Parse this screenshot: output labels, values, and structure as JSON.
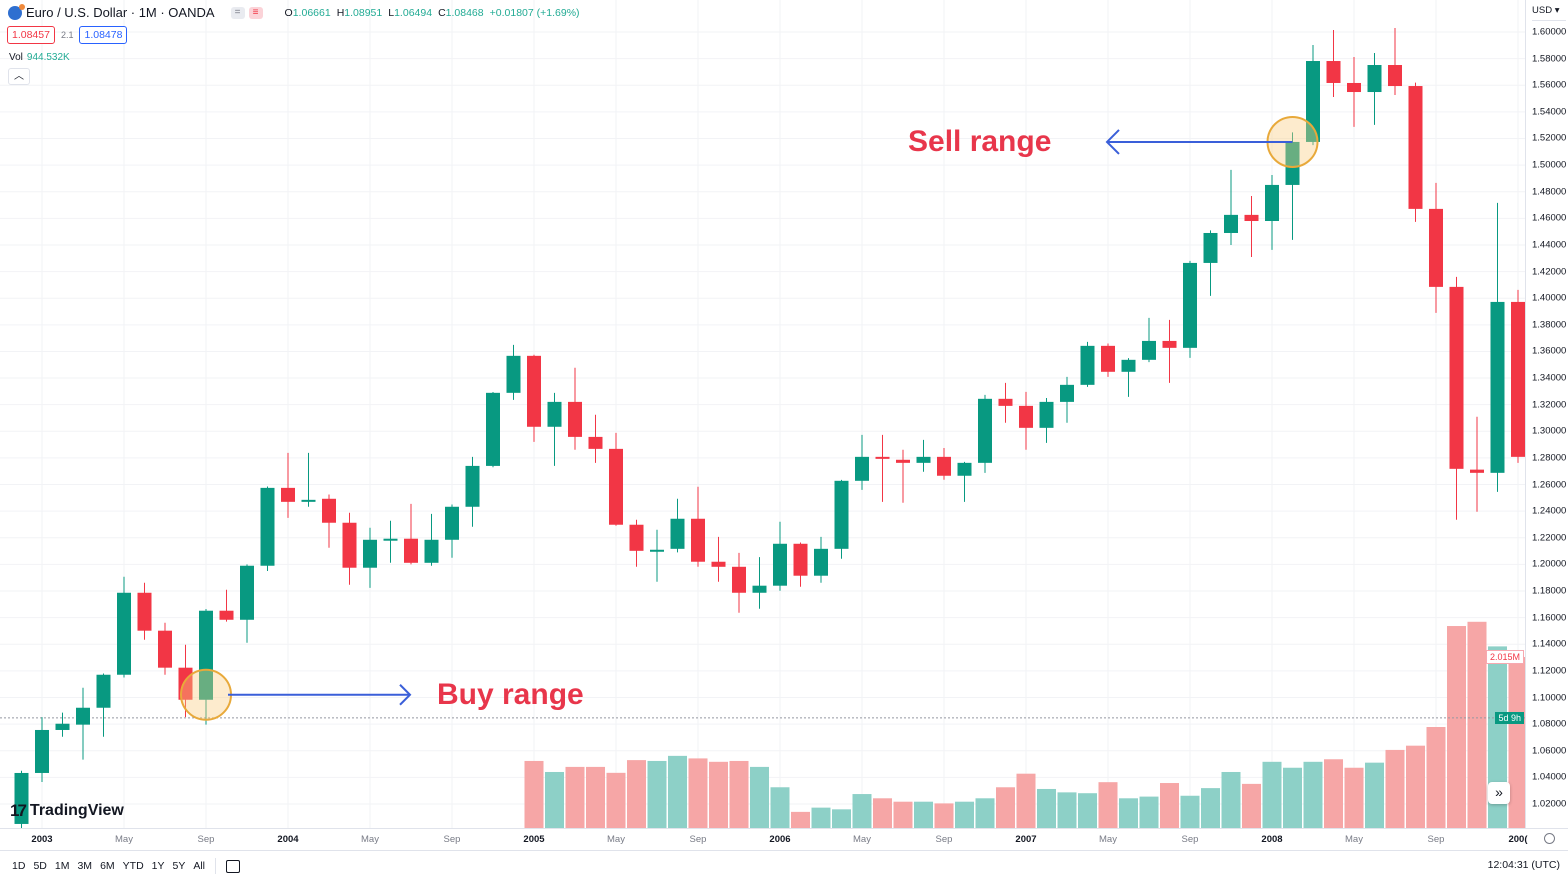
{
  "header": {
    "symbol": "Euro / U.S. Dollar · 1M · OANDA",
    "ohlc": [
      {
        "k": "O",
        "v": "1.06661"
      },
      {
        "k": "H",
        "v": "1.08951"
      },
      {
        "k": "L",
        "v": "1.06494"
      },
      {
        "k": "C",
        "v": "1.08468"
      }
    ],
    "change": "+0.01807 (+1.69%)",
    "sell_price": "1.08457",
    "spread": "2.1",
    "buy_price": "1.08478",
    "vol_label": "Vol",
    "vol_value": "944.532K",
    "collapse_icon": "chevron-up-icon"
  },
  "price_axis": {
    "currency": "USD ▾",
    "last_tag": "5d 9h",
    "volume_tag": "2.015M"
  },
  "annotations": {
    "buy": "Buy range",
    "sell": "Sell range"
  },
  "toolbar": {
    "ranges": [
      "1D",
      "5D",
      "1M",
      "3M",
      "6M",
      "YTD",
      "1Y",
      "5Y",
      "All"
    ],
    "clock": "12:04:31 (UTC)",
    "logo": "TradingView"
  },
  "colors": {
    "up": "#089981",
    "down": "#f23645",
    "vol_up": "#8dd0c7",
    "vol_down": "#f6a6a6",
    "anno": "#e8364b",
    "arrow": "#3a5fd9"
  },
  "chart_data": {
    "type": "candlestick",
    "title": "Euro / U.S. Dollar · 1M · OANDA",
    "ylim": [
      1.0,
      1.61
    ],
    "y_ticks": [
      "1.60000",
      "1.58000",
      "1.56000",
      "1.54000",
      "1.52000",
      "1.50000",
      "1.48000",
      "1.46000",
      "1.44000",
      "1.42000",
      "1.40000",
      "1.38000",
      "1.36000",
      "1.34000",
      "1.32000",
      "1.30000",
      "1.28000",
      "1.26000",
      "1.24000",
      "1.22000",
      "1.20000",
      "1.18000",
      "1.16000",
      "1.14000",
      "1.12000",
      "1.10000",
      "1.08000",
      "1.06000",
      "1.04000",
      "1.02000"
    ],
    "x_ticks": [
      {
        "label": "2003",
        "date": "2003-01",
        "major": true
      },
      {
        "label": "May",
        "date": "2003-05"
      },
      {
        "label": "Sep",
        "date": "2003-09"
      },
      {
        "label": "2004",
        "date": "2004-01",
        "major": true
      },
      {
        "label": "May",
        "date": "2004-05"
      },
      {
        "label": "Sep",
        "date": "2004-09"
      },
      {
        "label": "2005",
        "date": "2005-01",
        "major": true
      },
      {
        "label": "May",
        "date": "2005-05"
      },
      {
        "label": "Sep",
        "date": "2005-09"
      },
      {
        "label": "2006",
        "date": "2006-01",
        "major": true
      },
      {
        "label": "May",
        "date": "2006-05"
      },
      {
        "label": "Sep",
        "date": "2006-09"
      },
      {
        "label": "2007",
        "date": "2007-01",
        "major": true
      },
      {
        "label": "May",
        "date": "2007-05"
      },
      {
        "label": "Sep",
        "date": "2007-09"
      },
      {
        "label": "2008",
        "date": "2008-01",
        "major": true
      },
      {
        "label": "May",
        "date": "2008-05"
      },
      {
        "label": "Sep",
        "date": "2008-09"
      },
      {
        "label": "200(",
        "date": "2009-01",
        "major": true
      }
    ],
    "last_price": 1.08468,
    "candles": [
      [
        "2002-12",
        1.005,
        1.045,
        0.99,
        1.0433
      ],
      [
        "2003-01",
        1.0433,
        1.0853,
        1.0365,
        1.0756
      ],
      [
        "2003-02",
        1.0756,
        1.0886,
        1.0705,
        1.0803
      ],
      [
        "2003-03",
        1.0796,
        1.1073,
        1.0533,
        1.0923
      ],
      [
        "2003-04",
        1.0923,
        1.118,
        1.0705,
        1.1171
      ],
      [
        "2003-05",
        1.1171,
        1.1907,
        1.115,
        1.1787
      ],
      [
        "2003-06",
        1.1787,
        1.1862,
        1.1434,
        1.1502
      ],
      [
        "2003-07",
        1.1502,
        1.1562,
        1.1171,
        1.1224
      ],
      [
        "2003-08",
        1.1224,
        1.1396,
        1.0853,
        1.0983
      ],
      [
        "2003-09",
        1.0983,
        1.1665,
        1.0796,
        1.1652
      ],
      [
        "2003-10",
        1.1652,
        1.181,
        1.157,
        1.1584
      ],
      [
        "2003-11",
        1.1584,
        1.2,
        1.1411,
        1.199
      ],
      [
        "2003-12",
        1.199,
        1.2585,
        1.195,
        1.2575
      ],
      [
        "2004-01",
        1.2575,
        1.2838,
        1.235,
        1.247
      ],
      [
        "2004-02",
        1.247,
        1.2838,
        1.2433,
        1.2485
      ],
      [
        "2004-03",
        1.2493,
        1.2525,
        1.2125,
        1.2313
      ],
      [
        "2004-04",
        1.2313,
        1.2388,
        1.1847,
        1.1975
      ],
      [
        "2004-05",
        1.1975,
        1.2275,
        1.1824,
        1.2185
      ],
      [
        "2004-06",
        1.2185,
        1.2328,
        1.2012,
        1.2193
      ],
      [
        "2004-07",
        1.2193,
        1.2455,
        1.2,
        1.2012
      ],
      [
        "2004-08",
        1.2012,
        1.238,
        1.199,
        1.2185
      ],
      [
        "2004-09",
        1.2185,
        1.245,
        1.205,
        1.2433
      ],
      [
        "2004-10",
        1.2433,
        1.2808,
        1.2283,
        1.274
      ],
      [
        "2004-11",
        1.274,
        1.3295,
        1.273,
        1.3289
      ],
      [
        "2004-12",
        1.3289,
        1.3649,
        1.3236,
        1.3567
      ],
      [
        "2005-01",
        1.3567,
        1.3575,
        1.2921,
        1.3034
      ],
      [
        "2005-02",
        1.3034,
        1.3289,
        1.274,
        1.3221
      ],
      [
        "2005-03",
        1.3221,
        1.3477,
        1.2861,
        1.2958
      ],
      [
        "2005-04",
        1.2958,
        1.3124,
        1.2763,
        1.2868
      ],
      [
        "2005-05",
        1.2868,
        1.2988,
        1.229,
        1.2298
      ],
      [
        "2005-06",
        1.2298,
        1.2335,
        1.1982,
        1.2102
      ],
      [
        "2005-07",
        1.2102,
        1.226,
        1.187,
        1.211
      ],
      [
        "2005-08",
        1.2117,
        1.2493,
        1.209,
        1.2343
      ],
      [
        "2005-09",
        1.2343,
        1.2583,
        1.1982,
        1.202
      ],
      [
        "2005-10",
        1.202,
        1.2207,
        1.187,
        1.1982
      ],
      [
        "2005-11",
        1.1982,
        1.2087,
        1.1637,
        1.1787
      ],
      [
        "2005-12",
        1.1787,
        1.2055,
        1.1667,
        1.184
      ],
      [
        "2006-01",
        1.184,
        1.232,
        1.1802,
        1.2155
      ],
      [
        "2006-02",
        1.2155,
        1.2165,
        1.1832,
        1.1915
      ],
      [
        "2006-03",
        1.1915,
        1.2207,
        1.1862,
        1.2117
      ],
      [
        "2006-04",
        1.2117,
        1.2635,
        1.2042,
        1.2628
      ],
      [
        "2006-05",
        1.2628,
        1.2973,
        1.256,
        1.2808
      ],
      [
        "2006-06",
        1.2808,
        1.2973,
        1.247,
        1.2795
      ],
      [
        "2006-07",
        1.2786,
        1.2861,
        1.2463,
        1.2763
      ],
      [
        "2006-08",
        1.2763,
        1.2936,
        1.2696,
        1.2808
      ],
      [
        "2006-09",
        1.2808,
        1.2875,
        1.2636,
        1.2666
      ],
      [
        "2006-10",
        1.2666,
        1.277,
        1.247,
        1.2763
      ],
      [
        "2006-11",
        1.2763,
        1.3274,
        1.2688,
        1.3244
      ],
      [
        "2006-12",
        1.3244,
        1.3364,
        1.3064,
        1.3191
      ],
      [
        "2007-01",
        1.3191,
        1.3296,
        1.2861,
        1.3026
      ],
      [
        "2007-02",
        1.3026,
        1.325,
        1.2913,
        1.3221
      ],
      [
        "2007-03",
        1.3221,
        1.3409,
        1.3064,
        1.3349
      ],
      [
        "2007-04",
        1.3349,
        1.3672,
        1.3334,
        1.3642
      ],
      [
        "2007-05",
        1.3642,
        1.366,
        1.3409,
        1.3447
      ],
      [
        "2007-06",
        1.3447,
        1.355,
        1.3259,
        1.3537
      ],
      [
        "2007-07",
        1.3537,
        1.3852,
        1.352,
        1.3679
      ],
      [
        "2007-08",
        1.3679,
        1.3837,
        1.3364,
        1.3627
      ],
      [
        "2007-09",
        1.3627,
        1.428,
        1.3552,
        1.4265
      ],
      [
        "2007-10",
        1.4265,
        1.451,
        1.4017,
        1.449
      ],
      [
        "2007-11",
        1.449,
        1.4964,
        1.44,
        1.4626
      ],
      [
        "2007-12",
        1.4626,
        1.4768,
        1.431,
        1.458
      ],
      [
        "2008-01",
        1.458,
        1.4926,
        1.4363,
        1.4851
      ],
      [
        "2008-02",
        1.4851,
        1.5246,
        1.4438,
        1.5174
      ],
      [
        "2008-03",
        1.5174,
        1.5902,
        1.515,
        1.5782
      ],
      [
        "2008-04",
        1.5782,
        1.6015,
        1.5512,
        1.5617
      ],
      [
        "2008-05",
        1.5617,
        1.5812,
        1.5287,
        1.5549
      ],
      [
        "2008-06",
        1.5549,
        1.5842,
        1.5302,
        1.5752
      ],
      [
        "2008-07",
        1.5752,
        1.603,
        1.5527,
        1.5594
      ],
      [
        "2008-08",
        1.5594,
        1.562,
        1.4573,
        1.4671
      ],
      [
        "2008-09",
        1.4671,
        1.4866,
        1.389,
        1.4085
      ],
      [
        "2008-10",
        1.4085,
        1.416,
        1.2335,
        1.2718
      ],
      [
        "2008-11",
        1.2712,
        1.3109,
        1.2396,
        1.2688
      ],
      [
        "2008-12",
        1.2688,
        1.4716,
        1.2545,
        1.3972
      ],
      [
        "2009-01",
        1.3972,
        1.4063,
        1.2763,
        1.2808
      ]
    ],
    "volume_start": "2005-01",
    "volume_millions": [
      0.79,
      0.66,
      0.72,
      0.72,
      0.65,
      0.8,
      0.79,
      0.85,
      0.82,
      0.78,
      0.79,
      0.72,
      0.48,
      0.19,
      0.24,
      0.22,
      0.4,
      0.35,
      0.31,
      0.31,
      0.29,
      0.31,
      0.35,
      0.48,
      0.64,
      0.46,
      0.42,
      0.41,
      0.54,
      0.35,
      0.37,
      0.53,
      0.38,
      0.47,
      0.66,
      0.52,
      0.78,
      0.71,
      0.78,
      0.81,
      0.71,
      0.77,
      0.92,
      0.97,
      1.19,
      2.38,
      2.43,
      2.14,
      2.015
    ],
    "annotations": [
      {
        "text": "Buy range",
        "date": "2003-09",
        "price": 1.0983,
        "arrow": "right"
      },
      {
        "text": "Sell range",
        "date": "2008-02",
        "price": 1.5174,
        "arrow": "left"
      }
    ]
  }
}
